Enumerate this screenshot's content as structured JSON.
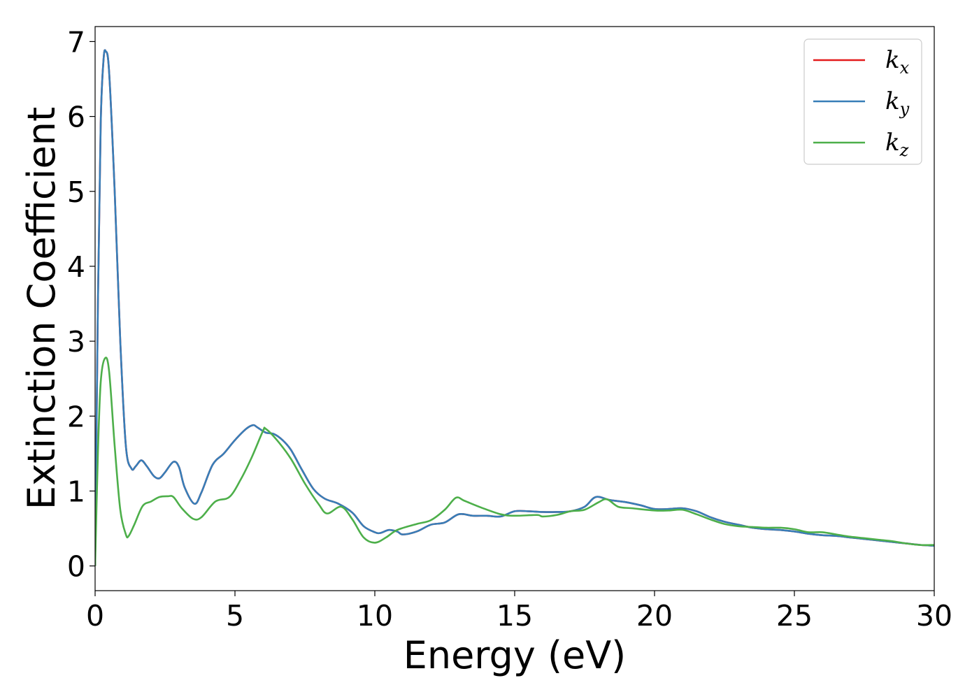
{
  "chart_data": {
    "type": "line",
    "xlabel": "Energy (eV)",
    "ylabel": "Extinction Coefficient",
    "xlim": [
      0,
      30
    ],
    "ylim": [
      -0.33,
      7.2
    ],
    "xticks": [
      0,
      5,
      10,
      15,
      20,
      25,
      30
    ],
    "yticks": [
      0,
      1,
      2,
      3,
      4,
      5,
      6,
      7
    ],
    "grid": false,
    "legend_position": "top-right",
    "series": [
      {
        "name": "k",
        "subscript": "x",
        "color": "#e41a1c",
        "points": [
          [
            0,
            0
          ],
          [
            0.1,
            3.5
          ],
          [
            0.2,
            5.9
          ],
          [
            0.3,
            6.75
          ],
          [
            0.38,
            6.87
          ],
          [
            0.5,
            6.6
          ],
          [
            0.7,
            5.0
          ],
          [
            0.9,
            3.0
          ],
          [
            1.1,
            1.6
          ],
          [
            1.3,
            1.3
          ],
          [
            1.45,
            1.33
          ],
          [
            1.65,
            1.41
          ],
          [
            1.85,
            1.33
          ],
          [
            2.1,
            1.2
          ],
          [
            2.3,
            1.17
          ],
          [
            2.5,
            1.25
          ],
          [
            2.8,
            1.39
          ],
          [
            3.0,
            1.32
          ],
          [
            3.2,
            1.05
          ],
          [
            3.55,
            0.83
          ],
          [
            3.8,
            0.98
          ],
          [
            4.2,
            1.35
          ],
          [
            4.6,
            1.5
          ],
          [
            5.0,
            1.68
          ],
          [
            5.4,
            1.83
          ],
          [
            5.65,
            1.88
          ],
          [
            5.8,
            1.85
          ],
          [
            6.1,
            1.78
          ],
          [
            6.4,
            1.76
          ],
          [
            6.7,
            1.68
          ],
          [
            7.0,
            1.55
          ],
          [
            7.4,
            1.28
          ],
          [
            7.8,
            1.03
          ],
          [
            8.2,
            0.9
          ],
          [
            8.7,
            0.83
          ],
          [
            9.2,
            0.71
          ],
          [
            9.6,
            0.53
          ],
          [
            10.0,
            0.45
          ],
          [
            10.2,
            0.44
          ],
          [
            10.5,
            0.48
          ],
          [
            10.8,
            0.46
          ],
          [
            11.0,
            0.42
          ],
          [
            11.5,
            0.46
          ],
          [
            12.0,
            0.55
          ],
          [
            12.5,
            0.58
          ],
          [
            13.0,
            0.69
          ],
          [
            13.5,
            0.67
          ],
          [
            14.0,
            0.67
          ],
          [
            14.5,
            0.66
          ],
          [
            15.0,
            0.73
          ],
          [
            15.5,
            0.73
          ],
          [
            16.0,
            0.72
          ],
          [
            16.5,
            0.72
          ],
          [
            17.0,
            0.73
          ],
          [
            17.5,
            0.79
          ],
          [
            17.9,
            0.92
          ],
          [
            18.4,
            0.88
          ],
          [
            19.0,
            0.85
          ],
          [
            19.5,
            0.81
          ],
          [
            20.0,
            0.76
          ],
          [
            20.5,
            0.76
          ],
          [
            21.0,
            0.77
          ],
          [
            21.5,
            0.73
          ],
          [
            22.0,
            0.65
          ],
          [
            22.5,
            0.59
          ],
          [
            23.0,
            0.55
          ],
          [
            23.5,
            0.51
          ],
          [
            24.0,
            0.49
          ],
          [
            24.5,
            0.48
          ],
          [
            25.0,
            0.46
          ],
          [
            25.5,
            0.43
          ],
          [
            26.0,
            0.41
          ],
          [
            26.5,
            0.4
          ],
          [
            27.0,
            0.38
          ],
          [
            27.5,
            0.36
          ],
          [
            28.0,
            0.34
          ],
          [
            28.5,
            0.32
          ],
          [
            29.0,
            0.3
          ],
          [
            29.5,
            0.28
          ],
          [
            30.0,
            0.27
          ]
        ]
      },
      {
        "name": "k",
        "subscript": "y",
        "color": "#377eb8",
        "points": [
          [
            0,
            0
          ],
          [
            0.1,
            3.5
          ],
          [
            0.2,
            5.9
          ],
          [
            0.3,
            6.75
          ],
          [
            0.38,
            6.87
          ],
          [
            0.5,
            6.6
          ],
          [
            0.7,
            5.0
          ],
          [
            0.9,
            3.0
          ],
          [
            1.1,
            1.6
          ],
          [
            1.3,
            1.3
          ],
          [
            1.45,
            1.33
          ],
          [
            1.65,
            1.41
          ],
          [
            1.85,
            1.33
          ],
          [
            2.1,
            1.2
          ],
          [
            2.3,
            1.17
          ],
          [
            2.5,
            1.25
          ],
          [
            2.8,
            1.39
          ],
          [
            3.0,
            1.32
          ],
          [
            3.2,
            1.05
          ],
          [
            3.55,
            0.83
          ],
          [
            3.8,
            0.98
          ],
          [
            4.2,
            1.35
          ],
          [
            4.6,
            1.5
          ],
          [
            5.0,
            1.68
          ],
          [
            5.4,
            1.83
          ],
          [
            5.65,
            1.88
          ],
          [
            5.8,
            1.85
          ],
          [
            6.1,
            1.78
          ],
          [
            6.4,
            1.76
          ],
          [
            6.7,
            1.68
          ],
          [
            7.0,
            1.55
          ],
          [
            7.4,
            1.28
          ],
          [
            7.8,
            1.03
          ],
          [
            8.2,
            0.9
          ],
          [
            8.7,
            0.83
          ],
          [
            9.2,
            0.71
          ],
          [
            9.6,
            0.53
          ],
          [
            10.0,
            0.45
          ],
          [
            10.2,
            0.44
          ],
          [
            10.5,
            0.48
          ],
          [
            10.8,
            0.46
          ],
          [
            11.0,
            0.42
          ],
          [
            11.5,
            0.46
          ],
          [
            12.0,
            0.55
          ],
          [
            12.5,
            0.58
          ],
          [
            13.0,
            0.69
          ],
          [
            13.5,
            0.67
          ],
          [
            14.0,
            0.67
          ],
          [
            14.5,
            0.66
          ],
          [
            15.0,
            0.73
          ],
          [
            15.5,
            0.73
          ],
          [
            16.0,
            0.72
          ],
          [
            16.5,
            0.72
          ],
          [
            17.0,
            0.73
          ],
          [
            17.5,
            0.79
          ],
          [
            17.9,
            0.92
          ],
          [
            18.4,
            0.88
          ],
          [
            19.0,
            0.85
          ],
          [
            19.5,
            0.81
          ],
          [
            20.0,
            0.76
          ],
          [
            20.5,
            0.76
          ],
          [
            21.0,
            0.77
          ],
          [
            21.5,
            0.73
          ],
          [
            22.0,
            0.65
          ],
          [
            22.5,
            0.59
          ],
          [
            23.0,
            0.55
          ],
          [
            23.5,
            0.51
          ],
          [
            24.0,
            0.49
          ],
          [
            24.5,
            0.48
          ],
          [
            25.0,
            0.46
          ],
          [
            25.5,
            0.43
          ],
          [
            26.0,
            0.41
          ],
          [
            26.5,
            0.4
          ],
          [
            27.0,
            0.38
          ],
          [
            27.5,
            0.36
          ],
          [
            28.0,
            0.34
          ],
          [
            28.5,
            0.32
          ],
          [
            29.0,
            0.3
          ],
          [
            29.5,
            0.28
          ],
          [
            30.0,
            0.27
          ]
        ]
      },
      {
        "name": "k",
        "subscript": "z",
        "color": "#4daf4a",
        "points": [
          [
            0,
            0
          ],
          [
            0.1,
            1.5
          ],
          [
            0.2,
            2.45
          ],
          [
            0.35,
            2.77
          ],
          [
            0.5,
            2.6
          ],
          [
            0.7,
            1.6
          ],
          [
            0.9,
            0.75
          ],
          [
            1.1,
            0.42
          ],
          [
            1.2,
            0.4
          ],
          [
            1.4,
            0.55
          ],
          [
            1.7,
            0.8
          ],
          [
            2.0,
            0.86
          ],
          [
            2.3,
            0.92
          ],
          [
            2.6,
            0.93
          ],
          [
            2.8,
            0.92
          ],
          [
            3.1,
            0.77
          ],
          [
            3.5,
            0.63
          ],
          [
            3.8,
            0.65
          ],
          [
            4.3,
            0.86
          ],
          [
            4.8,
            0.92
          ],
          [
            5.2,
            1.15
          ],
          [
            5.6,
            1.45
          ],
          [
            6.0,
            1.8
          ],
          [
            6.1,
            1.83
          ],
          [
            6.5,
            1.68
          ],
          [
            7.0,
            1.43
          ],
          [
            7.5,
            1.1
          ],
          [
            8.0,
            0.82
          ],
          [
            8.3,
            0.7
          ],
          [
            8.8,
            0.79
          ],
          [
            9.2,
            0.62
          ],
          [
            9.6,
            0.38
          ],
          [
            10.0,
            0.31
          ],
          [
            10.4,
            0.38
          ],
          [
            10.8,
            0.48
          ],
          [
            11.5,
            0.56
          ],
          [
            12.0,
            0.61
          ],
          [
            12.5,
            0.75
          ],
          [
            12.9,
            0.91
          ],
          [
            13.2,
            0.87
          ],
          [
            13.8,
            0.78
          ],
          [
            14.5,
            0.69
          ],
          [
            15.0,
            0.67
          ],
          [
            15.8,
            0.68
          ],
          [
            16.0,
            0.66
          ],
          [
            16.5,
            0.68
          ],
          [
            17.0,
            0.73
          ],
          [
            17.5,
            0.75
          ],
          [
            18.0,
            0.85
          ],
          [
            18.3,
            0.89
          ],
          [
            18.7,
            0.79
          ],
          [
            19.2,
            0.77
          ],
          [
            20.0,
            0.74
          ],
          [
            20.5,
            0.74
          ],
          [
            21.0,
            0.75
          ],
          [
            21.5,
            0.69
          ],
          [
            22.0,
            0.62
          ],
          [
            22.5,
            0.56
          ],
          [
            23.0,
            0.53
          ],
          [
            23.5,
            0.52
          ],
          [
            24.0,
            0.51
          ],
          [
            24.5,
            0.51
          ],
          [
            25.0,
            0.49
          ],
          [
            25.5,
            0.45
          ],
          [
            26.0,
            0.45
          ],
          [
            26.5,
            0.42
          ],
          [
            27.0,
            0.39
          ],
          [
            27.5,
            0.37
          ],
          [
            28.0,
            0.35
          ],
          [
            28.5,
            0.33
          ],
          [
            29.0,
            0.3
          ],
          [
            29.5,
            0.28
          ],
          [
            30.0,
            0.28
          ]
        ]
      }
    ]
  }
}
